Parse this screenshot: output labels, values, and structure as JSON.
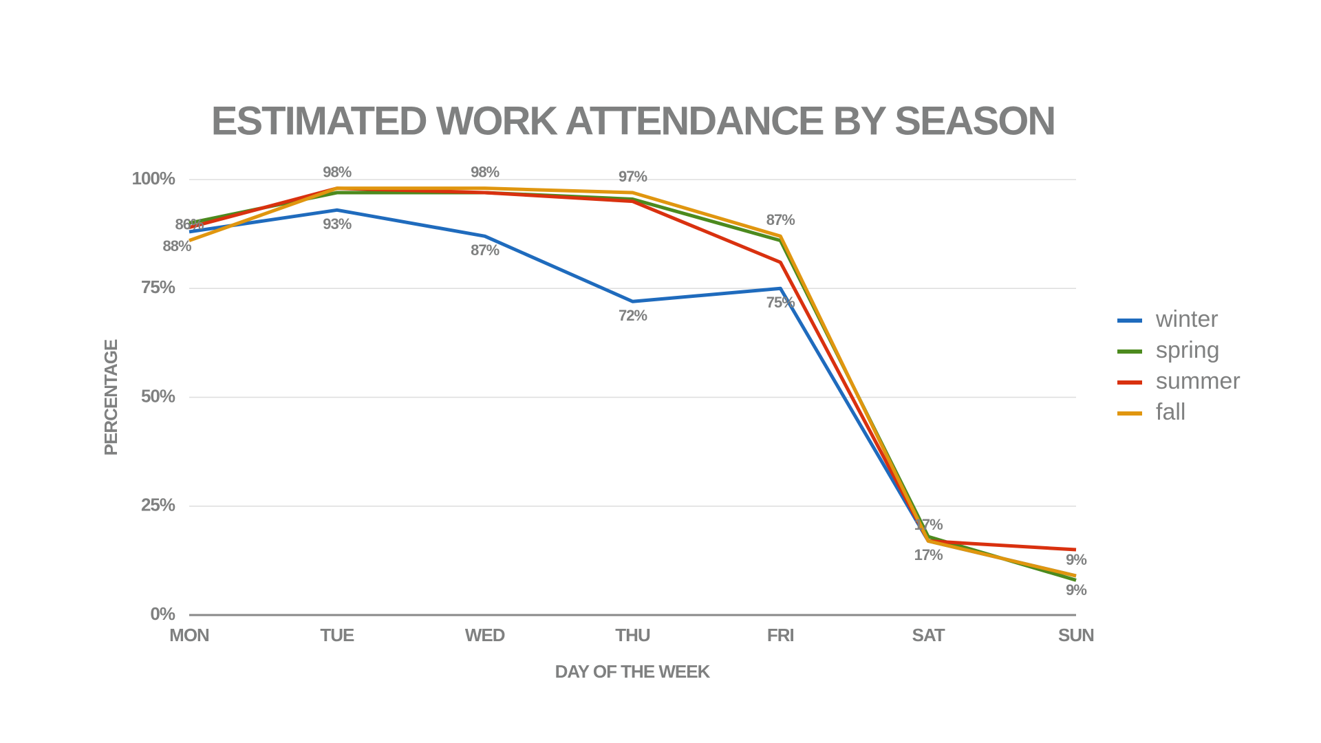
{
  "chart_data": {
    "type": "line",
    "title": "ESTIMATED WORK ATTENDANCE BY SEASON",
    "x_label": "DAY OF THE WEEK",
    "y_label": "PERCENTAGE",
    "categories": [
      "MON",
      "TUE",
      "WED",
      "THU",
      "FRI",
      "SAT",
      "SUN"
    ],
    "ylim": [
      0,
      100
    ],
    "yticks": [
      {
        "value": 0,
        "label": "0%"
      },
      {
        "value": 25,
        "label": "25%"
      },
      {
        "value": 50,
        "label": "50%"
      },
      {
        "value": 75,
        "label": "75%"
      },
      {
        "value": 100,
        "label": "100%"
      }
    ],
    "grid": true,
    "legend": "right",
    "series": [
      {
        "name": "winter",
        "color": "#1f6bbd",
        "values": [
          88,
          93,
          87,
          72,
          75,
          17,
          9
        ],
        "value_labels": [
          "88%",
          "93%",
          "87%",
          "72%",
          "75%",
          "17%",
          "9%"
        ]
      },
      {
        "name": "spring",
        "color": "#4c8a1e",
        "values": [
          90,
          97,
          97,
          95.5,
          86,
          18,
          8
        ]
      },
      {
        "name": "summer",
        "color": "#d9310f",
        "values": [
          89,
          98,
          97,
          95,
          81,
          17,
          15
        ]
      },
      {
        "name": "fall",
        "color": "#e0960f",
        "values": [
          86,
          98,
          98,
          97,
          87,
          17,
          9
        ],
        "value_labels": [
          "86%",
          "98%",
          "98%",
          "97%",
          "87%",
          "17%",
          "9%"
        ]
      }
    ]
  }
}
